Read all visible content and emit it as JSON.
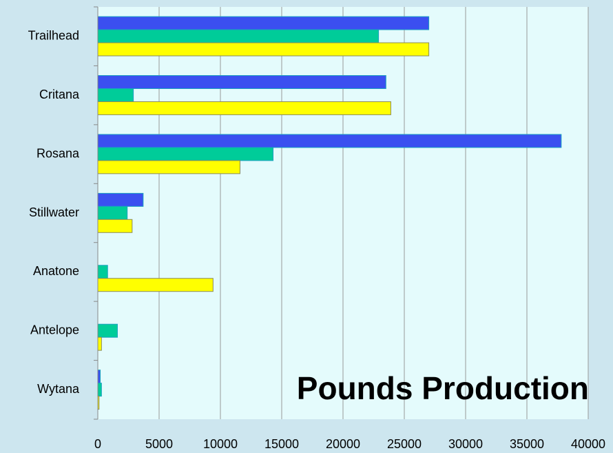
{
  "chart_data": {
    "type": "barh",
    "title": "Pounds Production",
    "categories": [
      "Trailhead",
      "Critana",
      "Rosana",
      "Stillwater",
      "Anatone",
      "Antelope",
      "Wytana"
    ],
    "series": [
      {
        "color": "#3b4ff0",
        "values": [
          27000,
          23500,
          37800,
          3700,
          0,
          0,
          200
        ]
      },
      {
        "color": "#00cc99",
        "values": [
          22900,
          2900,
          14300,
          2400,
          800,
          1600,
          300
        ]
      },
      {
        "color": "#ffff00",
        "values": [
          27000,
          23900,
          11600,
          2800,
          9400,
          300,
          100
        ]
      }
    ],
    "xlim": [
      0,
      40000
    ],
    "xticks": [
      0,
      5000,
      10000,
      15000,
      20000,
      25000,
      30000,
      35000,
      40000
    ],
    "grid": true
  }
}
